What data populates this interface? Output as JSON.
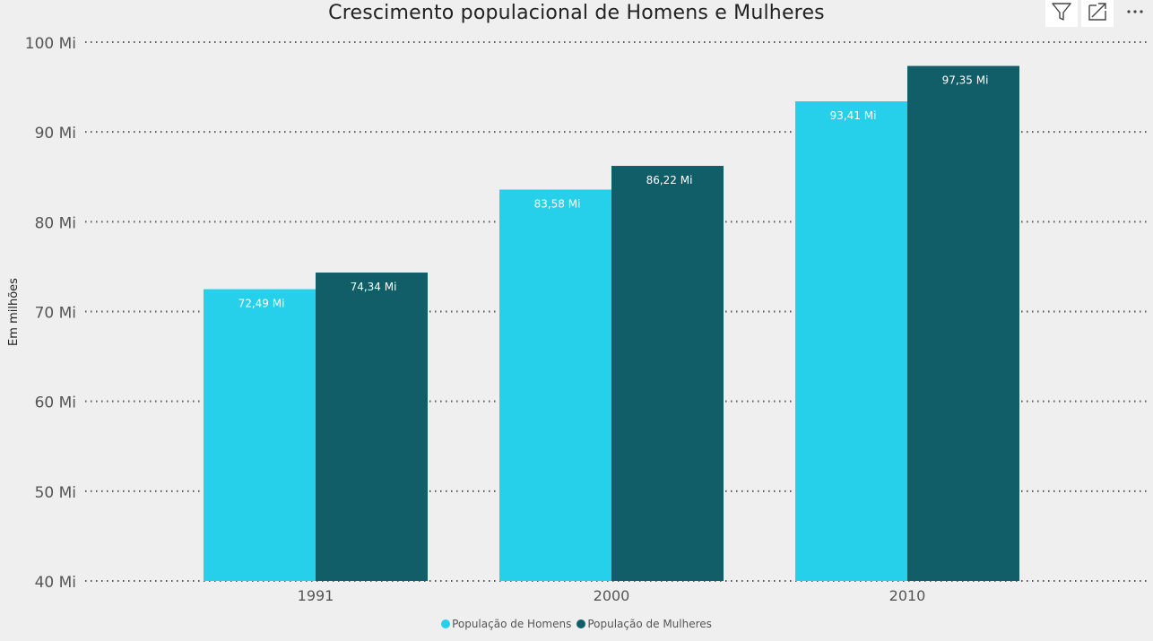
{
  "toolbar": {
    "filter_icon": "filter-icon",
    "focus_icon": "focus-mode-icon",
    "more_icon": "more-options-icon",
    "more_glyph": "···"
  },
  "colors": {
    "homens": "#26d0ea",
    "mulheres": "#115e69",
    "gridline": "#555555",
    "axis_text": "#555555"
  },
  "chart_data": {
    "type": "bar",
    "title": "Crescimento populacional de Homens e Mulheres",
    "xlabel": "",
    "ylabel": "Em milhões",
    "categories": [
      "1991",
      "2000",
      "2010"
    ],
    "ylim": [
      40,
      100
    ],
    "yticks": [
      "40 Mi",
      "50 Mi",
      "60 Mi",
      "70 Mi",
      "80 Mi",
      "90 Mi",
      "100 Mi"
    ],
    "ytick_values": [
      40,
      50,
      60,
      70,
      80,
      90,
      100
    ],
    "grid": true,
    "legend_position": "bottom-center",
    "series": [
      {
        "name": "População de Homens",
        "values": [
          72.49,
          83.58,
          93.41
        ],
        "labels": [
          "72,49 Mi",
          "83,58 Mi",
          "93,41 Mi"
        ]
      },
      {
        "name": "População de Mulheres",
        "values": [
          74.34,
          86.22,
          97.35
        ],
        "labels": [
          "74,34 Mi",
          "86,22 Mi",
          "97,35 Mi"
        ]
      }
    ]
  }
}
